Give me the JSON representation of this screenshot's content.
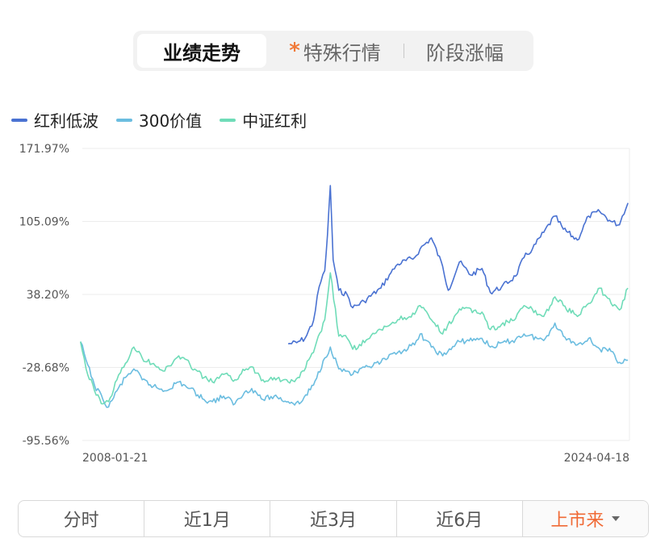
{
  "tabs": [
    {
      "label": "业绩走势",
      "active": true
    },
    {
      "label": "特殊行情",
      "active": false,
      "star": "*"
    },
    {
      "label": "阶段涨幅",
      "active": false
    }
  ],
  "colors": {
    "series1": "#4a72d2",
    "series2": "#6bbde0",
    "series3": "#6fdcb8",
    "accent": "#f06a35",
    "star": "#f07a3a"
  },
  "periods": [
    {
      "label": "分时",
      "active": false
    },
    {
      "label": "近1月",
      "active": false
    },
    {
      "label": "近3月",
      "active": false
    },
    {
      "label": "近6月",
      "active": false
    },
    {
      "label": "上市来",
      "active": true
    }
  ],
  "chart_data": {
    "type": "line",
    "yticks": [
      "171.97%",
      "105.09%",
      "38.20%",
      "-28.68%",
      "-95.56%"
    ],
    "ylim": [
      -95.56,
      171.97
    ],
    "xlim": [
      "2008-01-21",
      "2024-04-18"
    ],
    "x_tick_labels": [
      "2008-01-21",
      "2024-04-18"
    ],
    "grid": true,
    "legend_position": "top-left",
    "series": [
      {
        "name": "红利低波",
        "x": [
          "2014-03",
          "2014-06",
          "2014-09",
          "2014-12",
          "2015-02",
          "2015-04",
          "2015-05",
          "2015-06",
          "2015-07",
          "2015-09",
          "2015-12",
          "2016-02",
          "2016-06",
          "2016-12",
          "2017-03",
          "2017-06",
          "2017-12",
          "2018-02",
          "2018-06",
          "2018-10",
          "2018-12",
          "2019-04",
          "2019-08",
          "2019-12",
          "2020-03",
          "2020-07",
          "2020-12",
          "2021-03",
          "2021-06",
          "2021-10",
          "2022-02",
          "2022-05",
          "2022-10",
          "2023-02",
          "2023-06",
          "2023-10",
          "2024-01",
          "2024-02",
          "2024-04"
        ],
        "values": [
          -7,
          -6,
          -2,
          14,
          45,
          60,
          93,
          138,
          70,
          42,
          38,
          26,
          32,
          44,
          56,
          66,
          72,
          80,
          90,
          64,
          42,
          68,
          56,
          62,
          40,
          45,
          55,
          72,
          80,
          95,
          110,
          98,
          88,
          110,
          114,
          105,
          102,
          110,
          122
        ]
      },
      {
        "name": "300价值",
        "x": [
          "2008-01",
          "2008-03",
          "2008-06",
          "2008-09",
          "2008-11",
          "2009-02",
          "2009-05",
          "2009-08",
          "2009-11",
          "2010-03",
          "2010-07",
          "2010-12",
          "2011-04",
          "2011-09",
          "2011-12",
          "2012-04",
          "2012-08",
          "2012-12",
          "2013-02",
          "2013-06",
          "2013-10",
          "2014-03",
          "2014-07",
          "2014-12",
          "2015-04",
          "2015-06",
          "2015-09",
          "2015-12",
          "2016-02",
          "2016-08",
          "2016-12",
          "2017-06",
          "2017-12",
          "2018-02",
          "2018-06",
          "2018-10",
          "2019-04",
          "2019-12",
          "2020-03",
          "2020-12",
          "2021-03",
          "2021-10",
          "2022-02",
          "2022-05",
          "2022-10",
          "2023-02",
          "2023-06",
          "2023-10",
          "2024-01",
          "2024-04"
        ],
        "values": [
          -5,
          -22,
          -45,
          -58,
          -65,
          -50,
          -38,
          -30,
          -40,
          -46,
          -50,
          -42,
          -48,
          -58,
          -60,
          -55,
          -62,
          -50,
          -48,
          -58,
          -55,
          -60,
          -62,
          -45,
          -20,
          -10,
          -30,
          -32,
          -35,
          -28,
          -24,
          -15,
          -8,
          2,
          -10,
          -18,
          -5,
          -2,
          -10,
          -3,
          2,
          -4,
          12,
          0,
          -8,
          -2,
          -12,
          -14,
          -24,
          -22
        ]
      },
      {
        "name": "中证红利",
        "x": [
          "2008-01",
          "2008-03",
          "2008-06",
          "2008-09",
          "2008-11",
          "2009-02",
          "2009-05",
          "2009-08",
          "2009-11",
          "2010-03",
          "2010-07",
          "2010-12",
          "2011-04",
          "2011-09",
          "2011-12",
          "2012-04",
          "2012-08",
          "2012-12",
          "2013-02",
          "2013-06",
          "2013-10",
          "2014-03",
          "2014-07",
          "2014-12",
          "2015-04",
          "2015-06",
          "2015-09",
          "2015-12",
          "2016-02",
          "2016-08",
          "2016-12",
          "2017-06",
          "2017-12",
          "2018-02",
          "2018-06",
          "2018-10",
          "2019-04",
          "2019-12",
          "2020-03",
          "2020-12",
          "2021-03",
          "2021-10",
          "2022-02",
          "2022-05",
          "2022-10",
          "2023-02",
          "2023-06",
          "2023-10",
          "2024-01",
          "2024-04"
        ],
        "values": [
          -5,
          -30,
          -50,
          -62,
          -60,
          -40,
          -25,
          -10,
          -20,
          -25,
          -32,
          -18,
          -26,
          -38,
          -42,
          -35,
          -40,
          -30,
          -28,
          -40,
          -38,
          -42,
          -38,
          -15,
          15,
          58,
          0,
          -2,
          -12,
          -2,
          6,
          15,
          20,
          28,
          15,
          2,
          25,
          22,
          6,
          16,
          28,
          18,
          36,
          28,
          18,
          30,
          44,
          30,
          24,
          44
        ]
      }
    ]
  }
}
